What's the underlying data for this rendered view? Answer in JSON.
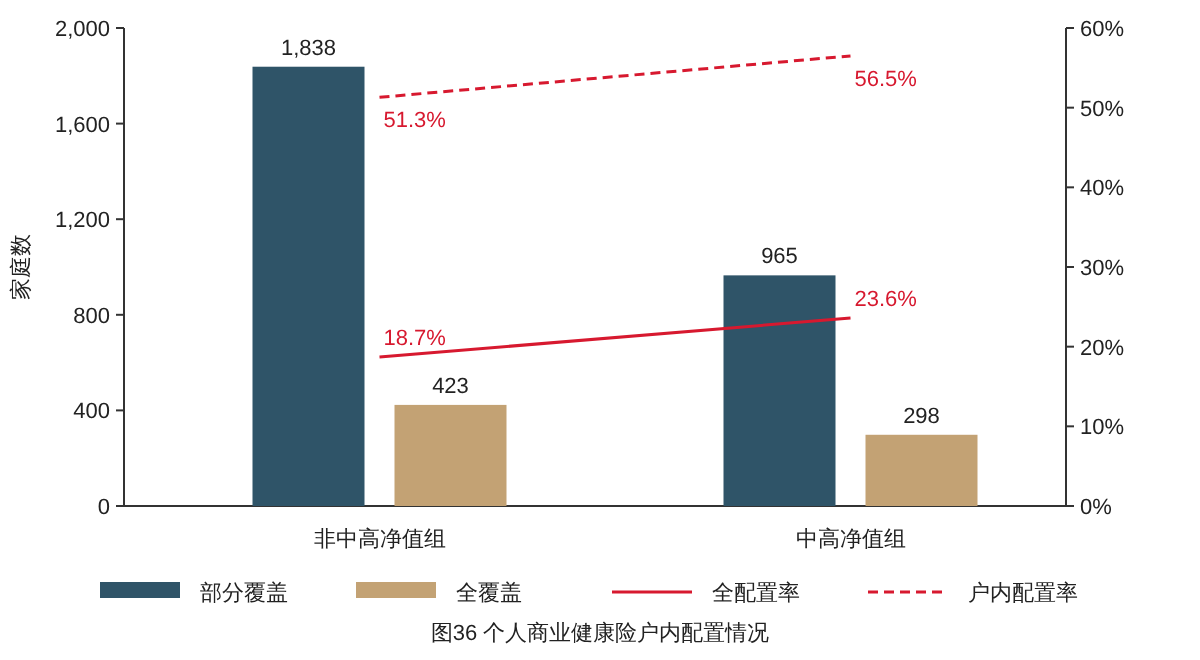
{
  "chart_data": {
    "type": "bar",
    "ylabel": "家庭数",
    "categories": [
      "非中高净值组",
      "中高净值组"
    ],
    "ylim": [
      0,
      2000
    ],
    "yticks": [
      0,
      {
        "value": 400,
        "label": "400"
      },
      {
        "value": 800,
        "label": "800"
      },
      {
        "value": 1200,
        "label": "1,200"
      },
      {
        "value": 1600,
        "label": "1,600"
      },
      {
        "value": 2000,
        "label": "2,000"
      }
    ],
    "y2lim": [
      0,
      60
    ],
    "y2ticks": [
      {
        "value": 0,
        "label": "0%"
      },
      {
        "value": 10,
        "label": "10%"
      },
      {
        "value": 20,
        "label": "20%"
      },
      {
        "value": 30,
        "label": "30%"
      },
      {
        "value": 40,
        "label": "40%"
      },
      {
        "value": 50,
        "label": "50%"
      },
      {
        "value": 60,
        "label": "60%"
      }
    ],
    "series": [
      {
        "name": "部分覆盖",
        "color": "#2f5468",
        "values": [
          1838,
          965
        ],
        "value_labels": [
          "1,838",
          "965"
        ]
      },
      {
        "name": "全覆盖",
        "color": "#c3a274",
        "values": [
          423,
          298
        ],
        "value_labels": [
          "423",
          "298"
        ]
      },
      {
        "name": "全配置率",
        "type": "line",
        "axis": "y2",
        "line_style": "solid",
        "color": "#d7192f",
        "values": [
          18.7,
          23.6
        ],
        "value_labels": [
          "18.7%",
          "23.6%"
        ]
      },
      {
        "name": "户内配置率",
        "type": "line",
        "axis": "y2",
        "line_style": "dashed",
        "color": "#d7192f",
        "values": [
          51.3,
          56.5
        ],
        "value_labels": [
          "51.3%",
          "56.5%"
        ]
      }
    ],
    "legend": "bottom",
    "grid": false,
    "annotations": [
      "图36  个人商业健康险户内配置情况"
    ]
  }
}
